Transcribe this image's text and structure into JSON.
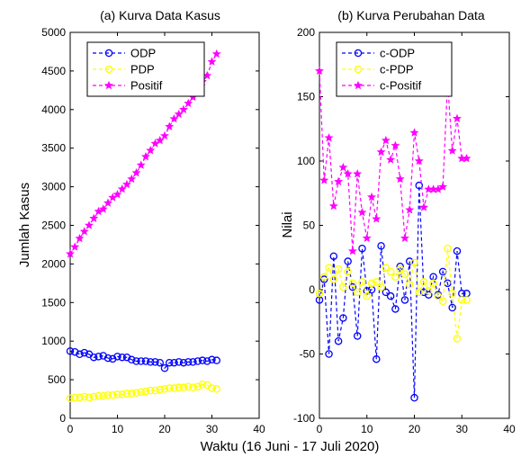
{
  "figure": {
    "common_xlabel": "Waktu (16 Juni - 17 Juli 2020)"
  },
  "chart_data": [
    {
      "type": "line",
      "title": "(a) Kurva Data Kasus",
      "xlabel": "",
      "ylabel": "Jumlah Kasus",
      "xlim": [
        0,
        40
      ],
      "ylim": [
        0,
        5000
      ],
      "xticks": [
        "0",
        "10",
        "20",
        "30",
        "40"
      ],
      "yticks": [
        "0",
        "500",
        "1000",
        "1500",
        "2000",
        "2500",
        "3000",
        "3500",
        "4000",
        "4500",
        "5000"
      ],
      "grid": false,
      "legend_position": "top-left",
      "x": [
        0,
        1,
        2,
        3,
        4,
        5,
        6,
        7,
        8,
        9,
        10,
        11,
        12,
        13,
        14,
        15,
        16,
        17,
        18,
        19,
        20,
        21,
        22,
        23,
        24,
        25,
        26,
        27,
        28,
        29,
        30,
        31
      ],
      "series": [
        {
          "name": "ODP",
          "color": "#0000ff",
          "marker": "circle",
          "values": [
            870,
            860,
            830,
            850,
            830,
            790,
            800,
            810,
            780,
            770,
            800,
            790,
            790,
            760,
            740,
            740,
            740,
            730,
            730,
            720,
            650,
            720,
            720,
            730,
            720,
            730,
            730,
            740,
            750,
            740,
            760,
            750
          ]
        },
        {
          "name": "PDP",
          "color": "#ffff00",
          "marker": "circle",
          "values": [
            260,
            270,
            270,
            280,
            270,
            280,
            290,
            290,
            300,
            300,
            310,
            310,
            320,
            320,
            330,
            340,
            350,
            360,
            360,
            370,
            380,
            390,
            390,
            400,
            400,
            410,
            400,
            410,
            440,
            430,
            390,
            380
          ]
        },
        {
          "name": "Positif",
          "color": "#ff00ff",
          "marker": "star",
          "values": [
            2130,
            2220,
            2330,
            2420,
            2500,
            2590,
            2680,
            2710,
            2790,
            2860,
            2900,
            2970,
            3030,
            3100,
            3180,
            3280,
            3390,
            3470,
            3560,
            3600,
            3660,
            3780,
            3880,
            3940,
            4000,
            4080,
            4160,
            4230,
            4360,
            4440,
            4620,
            4720
          ]
        }
      ]
    },
    {
      "type": "line",
      "title": "(b) Kurva Perubahan Data",
      "xlabel": "",
      "ylabel": "Nilai",
      "xlim": [
        0,
        40
      ],
      "ylim": [
        -100,
        200
      ],
      "xticks": [
        "0",
        "10",
        "20",
        "30",
        "40"
      ],
      "yticks": [
        "-100",
        "-50",
        "0",
        "50",
        "100",
        "150",
        "200"
      ],
      "grid": false,
      "legend_position": "top-left",
      "x": [
        0,
        1,
        2,
        3,
        4,
        5,
        6,
        7,
        8,
        9,
        10,
        11,
        12,
        13,
        14,
        15,
        16,
        17,
        18,
        19,
        20,
        21,
        22,
        23,
        24,
        25,
        26,
        27,
        28,
        29,
        30,
        31
      ],
      "series": [
        {
          "name": "c-ODP",
          "color": "#0000ff",
          "marker": "circle",
          "values": [
            -8,
            8,
            -50,
            26,
            -40,
            -22,
            22,
            2,
            -36,
            32,
            -1,
            0,
            -54,
            34,
            -2,
            -5,
            -15,
            18,
            -8,
            22,
            -84,
            81,
            -2,
            -4,
            10,
            -4,
            14,
            5,
            -14,
            30,
            -3,
            -3
          ]
        },
        {
          "name": "c-PDP",
          "color": "#ffff00",
          "marker": "circle",
          "values": [
            -3,
            10,
            17,
            8,
            16,
            2,
            14,
            5,
            -2,
            6,
            -5,
            5,
            6,
            2,
            17,
            14,
            10,
            16,
            12,
            4,
            21,
            -2,
            6,
            -1,
            5,
            -5,
            -9,
            32,
            -3,
            -38,
            -8,
            -8
          ]
        },
        {
          "name": "c-Positif",
          "color": "#ff00ff",
          "marker": "star",
          "values": [
            170,
            85,
            118,
            65,
            84,
            95,
            90,
            30,
            90,
            60,
            40,
            72,
            55,
            107,
            116,
            101,
            112,
            86,
            40,
            62,
            122,
            100,
            64,
            78,
            78,
            78,
            80,
            161,
            108,
            133,
            102,
            102
          ]
        }
      ]
    }
  ]
}
